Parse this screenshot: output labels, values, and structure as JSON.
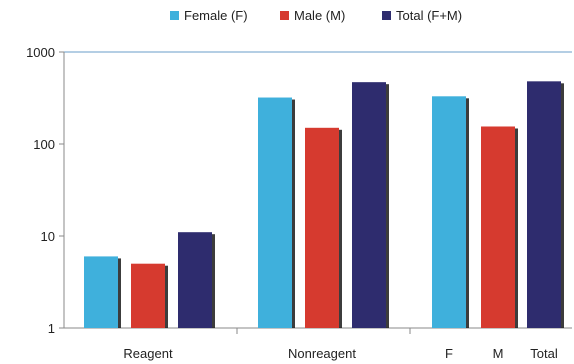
{
  "chart_data": {
    "type": "bar",
    "scale": "log",
    "ylim": [
      1,
      1000
    ],
    "y_ticks": [
      "1",
      "10",
      "100",
      "1000"
    ],
    "groups": [
      {
        "label": "Reagent",
        "bars": [
          {
            "series": "Female (F)",
            "value": 6
          },
          {
            "series": "Male (M)",
            "value": 5
          },
          {
            "series": "Total (F+M)",
            "value": 11
          }
        ]
      },
      {
        "label": "Nonreagent",
        "bars": [
          {
            "series": "Female (F)",
            "value": 320
          },
          {
            "series": "Male (M)",
            "value": 150
          },
          {
            "series": "Total (F+M)",
            "value": 470
          }
        ]
      },
      {
        "label": "",
        "bar_labels": [
          "F",
          "M",
          "Total"
        ],
        "bars": [
          {
            "series": "Female (F)",
            "value": 330
          },
          {
            "series": "Male (M)",
            "value": 155
          },
          {
            "series": "Total (F+M)",
            "value": 480
          }
        ]
      }
    ],
    "series": [
      {
        "name": "Female (F)",
        "color": "#3fb0dc"
      },
      {
        "name": "Male (M)",
        "color": "#d63a2f"
      },
      {
        "name": "Total (F+M)",
        "color": "#2e2c6e"
      }
    ],
    "legend_position": "top",
    "grid": false
  }
}
